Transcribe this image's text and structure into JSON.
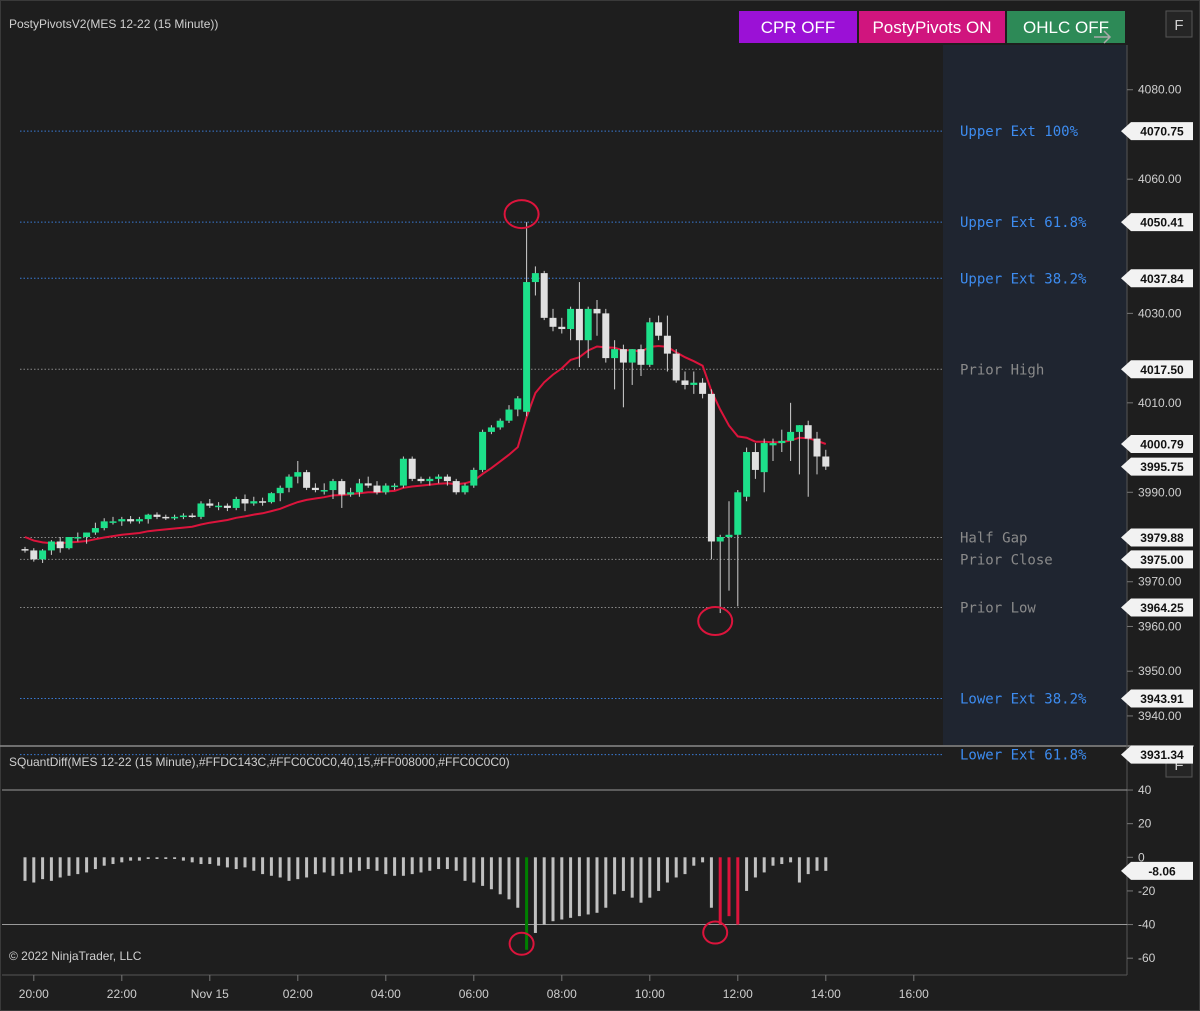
{
  "price_panel": {
    "title": "PostyPivotsV2(MES 12-22 (15 Minute))",
    "buttons": [
      {
        "label": "CPR OFF",
        "color": "#9b11d6"
      },
      {
        "label": "PostyPivots ON",
        "color": "#d0157e"
      },
      {
        "label": "OHLC OFF",
        "color": "#2d8a57"
      }
    ],
    "f_label": "F"
  },
  "indicator_panel": {
    "title": "SQuantDiff(MES 12-22 (15 Minute),#FFDC143C,#FFC0C0C0,40,15,#FF008000,#FFC0C0C0)",
    "f_label": "F"
  },
  "copyright": "© 2022 NinjaTrader, LLC",
  "colors": {
    "bull": "#1de08a",
    "bear": "#e0e0e0",
    "ema": "#dc143c",
    "ext_line": "#3a7bd5",
    "ext_label": "#3d8cf0",
    "gray_line": "#888888",
    "gray_label": "#8a8a8a",
    "bar_gray": "#c0c0c0",
    "bar_green": "#008000",
    "bar_red": "#dc143c",
    "annot": "#dc143c"
  },
  "chart_data": {
    "type": "candlestick",
    "x_ticks": [
      "20:00",
      "22:00",
      "Nov 15",
      "02:00",
      "04:00",
      "06:00",
      "08:00",
      "10:00",
      "12:00",
      "14:00",
      "16:00"
    ],
    "price_axis": {
      "ylim": [
        3933.5,
        4090
      ],
      "ticks": [
        "4080.00",
        "4060.00",
        "4030.00",
        "4010.00",
        "3990.00",
        "3970.00",
        "3960.00",
        "3950.00",
        "3940.00"
      ]
    },
    "levels": [
      {
        "name": "Upper Ext 100%",
        "value": 4070.75,
        "tag": "4070.75",
        "style": "ext"
      },
      {
        "name": "Upper Ext 61.8%",
        "value": 4050.41,
        "tag": "4050.41",
        "style": "ext"
      },
      {
        "name": "Upper Ext 38.2%",
        "value": 4037.84,
        "tag": "4037.84",
        "style": "ext"
      },
      {
        "name": "Prior High",
        "value": 4017.5,
        "tag": "4017.50",
        "style": "gray"
      },
      {
        "name": "Half Gap",
        "value": 3979.88,
        "tag": "3979.88",
        "style": "gray"
      },
      {
        "name": "Prior Close",
        "value": 3975.0,
        "tag": "3975.00",
        "style": "gray"
      },
      {
        "name": "Prior Low",
        "value": 3964.25,
        "tag": "3964.25",
        "style": "gray"
      },
      {
        "name": "Lower Ext 38.2%",
        "value": 3943.91,
        "tag": "3943.91",
        "style": "ext"
      },
      {
        "name": "Lower Ext 61.8%",
        "value": 3931.34,
        "tag": "3931.34",
        "style": "ext"
      }
    ],
    "price_tags": [
      {
        "value": 4000.79,
        "label": "4000.79"
      },
      {
        "value": 3995.75,
        "label": "3995.75"
      }
    ],
    "candles": [
      [
        3977.3,
        3977.8,
        3976.5,
        3977.0
      ],
      [
        3977.0,
        3977.5,
        3974.5,
        3975.0
      ],
      [
        3975.0,
        3977.3,
        3974.2,
        3977.0
      ],
      [
        3977.0,
        3979.3,
        3976.0,
        3979.0
      ],
      [
        3979.0,
        3980.0,
        3976.5,
        3977.5
      ],
      [
        3977.5,
        3980.0,
        3977.2,
        3980.0
      ],
      [
        3980.0,
        3981.0,
        3979.0,
        3980.0
      ],
      [
        3980.0,
        3981.0,
        3978.5,
        3981.0
      ],
      [
        3981.0,
        3983.2,
        3980.5,
        3982.0
      ],
      [
        3982.0,
        3984.2,
        3981.5,
        3983.5
      ],
      [
        3983.5,
        3984.5,
        3982.8,
        3983.5
      ],
      [
        3983.5,
        3984.5,
        3982.5,
        3984.0
      ],
      [
        3984.0,
        3984.7,
        3983.0,
        3983.5
      ],
      [
        3983.5,
        3984.5,
        3983.0,
        3984.0
      ],
      [
        3984.0,
        3985.2,
        3983.0,
        3985.0
      ],
      [
        3985.0,
        3985.5,
        3984.0,
        3984.5
      ],
      [
        3984.5,
        3985.0,
        3983.8,
        3984.3
      ],
      [
        3984.3,
        3985.0,
        3983.8,
        3984.5
      ],
      [
        3984.5,
        3985.3,
        3984.0,
        3984.8
      ],
      [
        3984.8,
        3985.3,
        3984.3,
        3984.5
      ],
      [
        3984.5,
        3988.0,
        3984.0,
        3987.5
      ],
      [
        3987.5,
        3988.5,
        3986.5,
        3987.0
      ],
      [
        3987.0,
        3987.8,
        3986.0,
        3987.0
      ],
      [
        3987.0,
        3987.5,
        3985.8,
        3986.5
      ],
      [
        3986.5,
        3989.0,
        3986.0,
        3988.5
      ],
      [
        3988.5,
        3989.5,
        3985.8,
        3987.5
      ],
      [
        3987.5,
        3989.0,
        3987.0,
        3988.0
      ],
      [
        3988.0,
        3988.8,
        3987.0,
        3987.8
      ],
      [
        3987.8,
        3990.0,
        3987.5,
        3989.8
      ],
      [
        3989.8,
        3991.5,
        3988.0,
        3991.0
      ],
      [
        3991.0,
        3994.0,
        3990.0,
        3993.5
      ],
      [
        3993.5,
        3997.0,
        3992.0,
        3994.5
      ],
      [
        3994.5,
        3995.0,
        3990.5,
        3991.0
      ],
      [
        3991.0,
        3992.0,
        3990.0,
        3990.5
      ],
      [
        3990.5,
        3992.0,
        3989.5,
        3990.5
      ],
      [
        3990.5,
        3993.0,
        3988.5,
        3992.5
      ],
      [
        3992.5,
        3993.0,
        3986.5,
        3989.5
      ],
      [
        3989.5,
        3991.0,
        3989.0,
        3990.0
      ],
      [
        3990.0,
        3993.0,
        3989.0,
        3992.0
      ],
      [
        3992.0,
        3993.5,
        3991.0,
        3991.5
      ],
      [
        3991.5,
        3992.5,
        3989.5,
        3990.0
      ],
      [
        3990.0,
        3992.0,
        3989.5,
        3991.5
      ],
      [
        3991.5,
        3992.0,
        3990.5,
        3991.5
      ],
      [
        3991.5,
        3998.0,
        3991.0,
        3997.5
      ],
      [
        3997.5,
        3998.0,
        3992.5,
        3993.0
      ],
      [
        3993.0,
        3993.5,
        3992.0,
        3992.5
      ],
      [
        3992.5,
        3993.5,
        3991.5,
        3993.0
      ],
      [
        3993.0,
        3994.0,
        3992.0,
        3993.5
      ],
      [
        3993.5,
        3994.0,
        3991.5,
        3992.5
      ],
      [
        3992.5,
        3993.0,
        3989.5,
        3990.0
      ],
      [
        3990.0,
        3992.0,
        3989.5,
        3991.5
      ],
      [
        3991.5,
        3995.5,
        3991.0,
        3995.0
      ],
      [
        3995.0,
        4004.0,
        3994.5,
        4003.5
      ],
      [
        4003.5,
        4005.0,
        4003.0,
        4004.5
      ],
      [
        4004.5,
        4006.5,
        4004.0,
        4006.0
      ],
      [
        4006.0,
        4009.5,
        4005.5,
        4008.5
      ],
      [
        4008.5,
        4011.5,
        4007.0,
        4011.0
      ],
      [
        4008.0,
        4050.41,
        4007.0,
        4037.0
      ],
      [
        4037.0,
        4040.5,
        4034.0,
        4039.0
      ],
      [
        4039.0,
        4039.5,
        4028.5,
        4029.0
      ],
      [
        4029.0,
        4031.0,
        4026.0,
        4027.0
      ],
      [
        4027.0,
        4029.0,
        4025.5,
        4026.5
      ],
      [
        4026.5,
        4031.5,
        4024.0,
        4031.0
      ],
      [
        4031.0,
        4037.0,
        4018.0,
        4024.0
      ],
      [
        4024.0,
        4031.5,
        4020.0,
        4031.0
      ],
      [
        4031.0,
        4033.0,
        4025.0,
        4030.0
      ],
      [
        4030.0,
        4031.0,
        4019.0,
        4020.0
      ],
      [
        4020.0,
        4024.0,
        4013.0,
        4022.0
      ],
      [
        4022.0,
        4023.0,
        4009.0,
        4019.0
      ],
      [
        4019.0,
        4022.0,
        4014.0,
        4022.0
      ],
      [
        4022.0,
        4023.0,
        4016.0,
        4018.5
      ],
      [
        4018.5,
        4029.0,
        4018.0,
        4028.0
      ],
      [
        4028.0,
        4029.5,
        4024.0,
        4025.0
      ],
      [
        4025.0,
        4029.5,
        4017.0,
        4021.0
      ],
      [
        4021.0,
        4022.0,
        4014.5,
        4015.0
      ],
      [
        4015.0,
        4017.0,
        4013.0,
        4014.0
      ],
      [
        4014.0,
        4017.0,
        4012.0,
        4014.5
      ],
      [
        4014.5,
        4015.5,
        4011.0,
        4012.0
      ],
      [
        4012.0,
        4013.0,
        3975.0,
        3979.0
      ],
      [
        3979.0,
        3980.5,
        3963.0,
        3980.0
      ],
      [
        3980.0,
        3988.0,
        3968.0,
        3980.5
      ],
      [
        3980.5,
        3990.5,
        3964.5,
        3990.0
      ],
      [
        3989.0,
        4000.0,
        3988.0,
        3999.0
      ],
      [
        3999.0,
        4001.0,
        3993.0,
        3995.0
      ],
      [
        3994.5,
        4002.0,
        3990.0,
        4001.0
      ],
      [
        4000.5,
        4002.0,
        3997.0,
        4001.0
      ],
      [
        4001.0,
        4004.0,
        3999.0,
        4001.5
      ],
      [
        4001.5,
        4010.0,
        3997.0,
        4003.5
      ],
      [
        4003.5,
        4005.0,
        3994.0,
        4005.0
      ],
      [
        4005.0,
        4006.0,
        3989.0,
        4002.0
      ],
      [
        4002.0,
        4003.5,
        3994.0,
        3998.0
      ],
      [
        3998.0,
        3999.5,
        3995.0,
        3995.75
      ]
    ],
    "ema": [
      3980.0,
      3979.2,
      3978.8,
      3978.6,
      3978.6,
      3978.8,
      3978.9,
      3979.1,
      3979.5,
      3979.9,
      3980.2,
      3980.5,
      3980.7,
      3980.9,
      3981.3,
      3981.5,
      3981.7,
      3981.9,
      3982.1,
      3982.3,
      3982.8,
      3983.2,
      3983.5,
      3983.8,
      3984.3,
      3984.6,
      3985.0,
      3985.3,
      3985.8,
      3986.3,
      3987.1,
      3987.8,
      3988.3,
      3988.6,
      3988.9,
      3989.3,
      3989.4,
      3989.6,
      3989.8,
      3990.0,
      3990.0,
      3990.2,
      3990.3,
      3991.0,
      3991.3,
      3991.5,
      3991.7,
      3991.9,
      3992.0,
      3991.8,
      3992.0,
      3992.6,
      3994.1,
      3995.4,
      3996.9,
      3998.4,
      4000.1,
      4006.8,
      4012.2,
      4014.6,
      4016.3,
      4017.7,
      4019.6,
      4020.2,
      4021.7,
      4022.6,
      4022.4,
      4022.3,
      4021.7,
      4021.8,
      4021.4,
      4022.5,
      4022.7,
      4022.5,
      4021.3,
      4020.2,
      4019.3,
      4018.3,
      4012.7,
      4008.5,
      4004.9,
      4002.5,
      4002.2,
      4001.3,
      4001.3,
      4001.2,
      4001.2,
      4001.6,
      4002.2,
      4002.1,
      4001.5,
      4000.79
    ],
    "circles": [
      {
        "bar": 57,
        "price": 4050.41,
        "where": "above"
      },
      {
        "bar": 79,
        "price": 3963.0,
        "where": "below"
      }
    ],
    "indicator": {
      "ylim": [
        -70,
        65
      ],
      "ticks": [
        "40",
        "20",
        "0",
        "-20",
        "-40",
        "-60"
      ],
      "bands": [
        40,
        -40
      ],
      "value_tag": "-8.06",
      "values": [
        -14,
        -15,
        -13,
        -14,
        -12,
        -11,
        -10,
        -9,
        -7,
        -5,
        -4,
        -3,
        -2,
        -2,
        -1,
        -1,
        -1,
        -1,
        -2,
        -3,
        -4,
        -4,
        -5,
        -6,
        -7,
        -6,
        -8,
        -10,
        -11,
        -12,
        -14,
        -13,
        -12,
        -10,
        -9,
        -11,
        -10,
        -9,
        -8,
        -7,
        -8,
        -10,
        -11,
        -11,
        -10,
        -9,
        -8,
        -7,
        -7,
        -8,
        -14,
        -15,
        -17,
        -19,
        -22,
        -25,
        -30,
        -55,
        -45,
        -40,
        -38,
        -37,
        -36,
        -35,
        -34,
        -33,
        -30,
        -22,
        -20,
        -24,
        -27,
        -24,
        -20,
        -15,
        -12,
        -10,
        -5,
        -3,
        -30,
        -40,
        -35,
        -40,
        -20,
        -12,
        -9,
        -5,
        -4,
        -3,
        -15,
        -10,
        -8,
        -8.06
      ],
      "colors": [
        "gray",
        "gray",
        "gray",
        "gray",
        "gray",
        "gray",
        "gray",
        "gray",
        "gray",
        "gray",
        "gray",
        "gray",
        "gray",
        "gray",
        "gray",
        "gray",
        "gray",
        "gray",
        "gray",
        "gray",
        "gray",
        "gray",
        "gray",
        "gray",
        "gray",
        "gray",
        "gray",
        "gray",
        "gray",
        "gray",
        "gray",
        "gray",
        "gray",
        "gray",
        "gray",
        "gray",
        "gray",
        "gray",
        "gray",
        "gray",
        "gray",
        "gray",
        "gray",
        "gray",
        "gray",
        "gray",
        "gray",
        "gray",
        "gray",
        "gray",
        "gray",
        "gray",
        "gray",
        "gray",
        "gray",
        "gray",
        "gray",
        "green",
        "gray",
        "gray",
        "gray",
        "gray",
        "gray",
        "gray",
        "gray",
        "gray",
        "gray",
        "gray",
        "gray",
        "gray",
        "gray",
        "gray",
        "gray",
        "gray",
        "gray",
        "gray",
        "gray",
        "gray",
        "gray",
        "red",
        "red",
        "red",
        "gray",
        "gray",
        "gray",
        "gray",
        "gray",
        "gray",
        "gray",
        "gray",
        "gray",
        "gray"
      ],
      "circles": [
        {
          "bar": 57,
          "where": "above"
        },
        {
          "bar": 79,
          "where": "below"
        }
      ]
    }
  }
}
